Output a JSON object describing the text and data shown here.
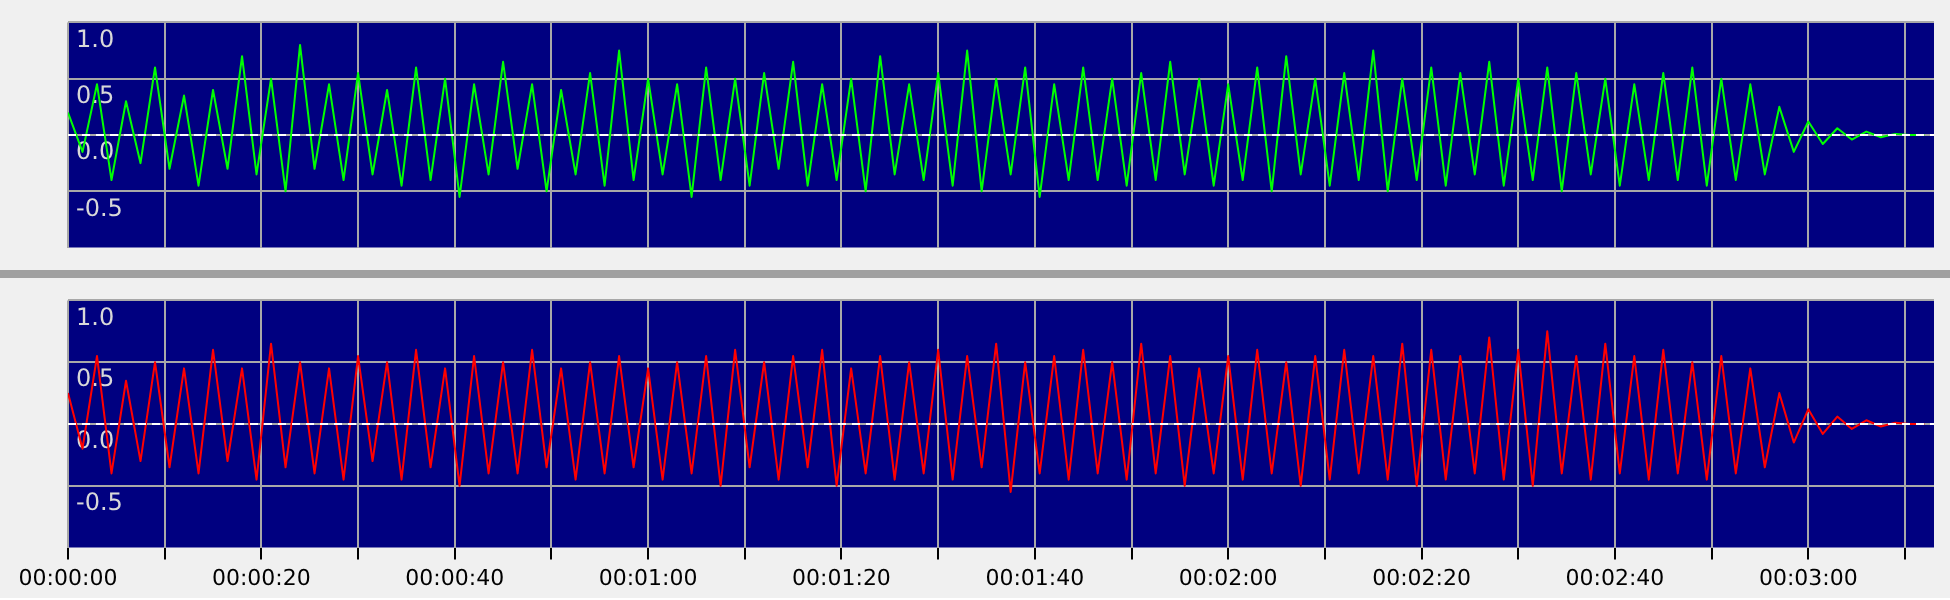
{
  "chart_data": [
    {
      "type": "line",
      "x": [
        0,
        1.5,
        3,
        4.5,
        6,
        7.5,
        9,
        10.5,
        12,
        13.5,
        15,
        16.5,
        18,
        19.5,
        21,
        22.5,
        24,
        25.5,
        27,
        28.5,
        30,
        31.5,
        33,
        34.5,
        36,
        37.5,
        39,
        40.5,
        42,
        43.5,
        45,
        46.5,
        48,
        49.5,
        51,
        52.5,
        54,
        55.5,
        57,
        58.5,
        60,
        61.5,
        63,
        64.5,
        66,
        67.5,
        69,
        70.5,
        72,
        73.5,
        75,
        76.5,
        78,
        79.5,
        81,
        82.5,
        84,
        85.5,
        87,
        88.5,
        90,
        91.5,
        93,
        94.5,
        96,
        97.5,
        99,
        100.5,
        102,
        103.5,
        105,
        106.5,
        108,
        109.5,
        111,
        112.5,
        114,
        115.5,
        117,
        118.5,
        120,
        121.5,
        123,
        124.5,
        126,
        127.5,
        129,
        130.5,
        132,
        133.5,
        135,
        136.5,
        138,
        139.5,
        141,
        142.5,
        144,
        145.5,
        147,
        148.5,
        150,
        151.5,
        153,
        154.5,
        156,
        157.5,
        159,
        160.5,
        162,
        163.5,
        165,
        166.5,
        168,
        169.5,
        171,
        172.5,
        174,
        175.5,
        177,
        178.5,
        180,
        181.5,
        183,
        184.5,
        186,
        187.5,
        189,
        190.5,
        192
      ],
      "series": [
        {
          "color": "#00ff00",
          "values": [
            0.2,
            -0.15,
            0.45,
            -0.4,
            0.3,
            -0.25,
            0.6,
            -0.3,
            0.35,
            -0.45,
            0.4,
            -0.3,
            0.7,
            -0.35,
            0.5,
            -0.5,
            0.8,
            -0.3,
            0.45,
            -0.4,
            0.55,
            -0.35,
            0.4,
            -0.45,
            0.6,
            -0.4,
            0.5,
            -0.55,
            0.45,
            -0.35,
            0.65,
            -0.3,
            0.45,
            -0.5,
            0.4,
            -0.35,
            0.55,
            -0.45,
            0.75,
            -0.4,
            0.5,
            -0.35,
            0.45,
            -0.55,
            0.6,
            -0.4,
            0.5,
            -0.45,
            0.55,
            -0.3,
            0.65,
            -0.45,
            0.45,
            -0.4,
            0.5,
            -0.5,
            0.7,
            -0.35,
            0.45,
            -0.4,
            0.55,
            -0.45,
            0.75,
            -0.5,
            0.5,
            -0.35,
            0.6,
            -0.55,
            0.45,
            -0.4,
            0.6,
            -0.4,
            0.5,
            -0.45,
            0.55,
            -0.4,
            0.65,
            -0.35,
            0.5,
            -0.45,
            0.45,
            -0.4,
            0.6,
            -0.5,
            0.7,
            -0.35,
            0.5,
            -0.45,
            0.55,
            -0.4,
            0.75,
            -0.5,
            0.5,
            -0.4,
            0.6,
            -0.45,
            0.55,
            -0.35,
            0.65,
            -0.45,
            0.5,
            -0.4,
            0.6,
            -0.5,
            0.55,
            -0.35,
            0.5,
            -0.45,
            0.45,
            -0.4,
            0.55,
            -0.4,
            0.6,
            -0.45,
            0.5,
            -0.4,
            0.45,
            -0.35,
            0.25,
            -0.15,
            0.12,
            -0.08,
            0.06,
            -0.04,
            0.03,
            -0.02,
            0.01,
            0,
            0
          ]
        }
      ],
      "ylim": [
        -1,
        1
      ],
      "yticks": [
        {
          "value": 1,
          "label": "1.0"
        },
        {
          "value": 0.5,
          "label": "0.5"
        },
        {
          "value": 0,
          "label": "0.0"
        },
        {
          "value": -0.5,
          "label": "-0.5"
        }
      ],
      "xlim": [
        0,
        193
      ],
      "xticks": [
        0,
        10,
        20,
        30,
        40,
        50,
        60,
        70,
        80,
        90,
        100,
        110,
        120,
        130,
        140,
        150,
        160,
        170,
        180,
        190
      ],
      "grid": true,
      "tick_labels": "y",
      "ref_lines": [
        {
          "axis": "y",
          "value": 0,
          "color": "#ffffff",
          "line_style": "dashed"
        }
      ]
    },
    {
      "type": "line",
      "x": [
        0,
        1.5,
        3,
        4.5,
        6,
        7.5,
        9,
        10.5,
        12,
        13.5,
        15,
        16.5,
        18,
        19.5,
        21,
        22.5,
        24,
        25.5,
        27,
        28.5,
        30,
        31.5,
        33,
        34.5,
        36,
        37.5,
        39,
        40.5,
        42,
        43.5,
        45,
        46.5,
        48,
        49.5,
        51,
        52.5,
        54,
        55.5,
        57,
        58.5,
        60,
        61.5,
        63,
        64.5,
        66,
        67.5,
        69,
        70.5,
        72,
        73.5,
        75,
        76.5,
        78,
        79.5,
        81,
        82.5,
        84,
        85.5,
        87,
        88.5,
        90,
        91.5,
        93,
        94.5,
        96,
        97.5,
        99,
        100.5,
        102,
        103.5,
        105,
        106.5,
        108,
        109.5,
        111,
        112.5,
        114,
        115.5,
        117,
        118.5,
        120,
        121.5,
        123,
        124.5,
        126,
        127.5,
        129,
        130.5,
        132,
        133.5,
        135,
        136.5,
        138,
        139.5,
        141,
        142.5,
        144,
        145.5,
        147,
        148.5,
        150,
        151.5,
        153,
        154.5,
        156,
        157.5,
        159,
        160.5,
        162,
        163.5,
        165,
        166.5,
        168,
        169.5,
        171,
        172.5,
        174,
        175.5,
        177,
        178.5,
        180,
        181.5,
        183,
        184.5,
        186,
        187.5,
        189,
        190.5,
        192
      ],
      "series": [
        {
          "color": "#ff0000",
          "values": [
            0.25,
            -0.2,
            0.55,
            -0.4,
            0.35,
            -0.3,
            0.5,
            -0.35,
            0.45,
            -0.4,
            0.6,
            -0.3,
            0.45,
            -0.45,
            0.65,
            -0.35,
            0.5,
            -0.4,
            0.45,
            -0.45,
            0.55,
            -0.3,
            0.5,
            -0.45,
            0.6,
            -0.35,
            0.45,
            -0.5,
            0.55,
            -0.4,
            0.5,
            -0.4,
            0.6,
            -0.35,
            0.45,
            -0.45,
            0.5,
            -0.4,
            0.55,
            -0.35,
            0.45,
            -0.45,
            0.5,
            -0.4,
            0.55,
            -0.5,
            0.6,
            -0.35,
            0.5,
            -0.45,
            0.55,
            -0.35,
            0.6,
            -0.5,
            0.45,
            -0.4,
            0.55,
            -0.45,
            0.5,
            -0.4,
            0.6,
            -0.45,
            0.55,
            -0.35,
            0.65,
            -0.55,
            0.5,
            -0.4,
            0.55,
            -0.45,
            0.6,
            -0.4,
            0.5,
            -0.45,
            0.65,
            -0.4,
            0.55,
            -0.5,
            0.45,
            -0.4,
            0.55,
            -0.45,
            0.6,
            -0.4,
            0.5,
            -0.5,
            0.55,
            -0.45,
            0.6,
            -0.4,
            0.55,
            -0.45,
            0.65,
            -0.5,
            0.6,
            -0.45,
            0.55,
            -0.4,
            0.7,
            -0.45,
            0.6,
            -0.5,
            0.75,
            -0.4,
            0.55,
            -0.45,
            0.65,
            -0.4,
            0.55,
            -0.45,
            0.6,
            -0.4,
            0.5,
            -0.45,
            0.55,
            -0.4,
            0.45,
            -0.35,
            0.25,
            -0.15,
            0.12,
            -0.08,
            0.06,
            -0.04,
            0.03,
            -0.02,
            0.01,
            0,
            0
          ]
        }
      ],
      "ylim": [
        -1,
        1
      ],
      "yticks": [
        {
          "value": 1,
          "label": "1.0"
        },
        {
          "value": 0.5,
          "label": "0.5"
        },
        {
          "value": 0,
          "label": "0.0"
        },
        {
          "value": -0.5,
          "label": "-0.5"
        }
      ],
      "xlim": [
        0,
        193
      ],
      "xticks": [
        {
          "value": 0,
          "label": "00:00:00"
        },
        {
          "value": 10,
          "label": null
        },
        {
          "value": 20,
          "label": "00:00:20"
        },
        {
          "value": 30,
          "label": null
        },
        {
          "value": 40,
          "label": "00:00:40"
        },
        {
          "value": 50,
          "label": null
        },
        {
          "value": 60,
          "label": "00:01:00"
        },
        {
          "value": 70,
          "label": null
        },
        {
          "value": 80,
          "label": "00:01:20"
        },
        {
          "value": 90,
          "label": null
        },
        {
          "value": 100,
          "label": "00:01:40"
        },
        {
          "value": 110,
          "label": null
        },
        {
          "value": 120,
          "label": "00:02:00"
        },
        {
          "value": 130,
          "label": null
        },
        {
          "value": 140,
          "label": "00:02:20"
        },
        {
          "value": 150,
          "label": null
        },
        {
          "value": 160,
          "label": "00:02:40"
        },
        {
          "value": 170,
          "label": null
        },
        {
          "value": 180,
          "label": "00:03:00"
        },
        {
          "value": 190,
          "label": null
        }
      ],
      "grid": true,
      "ref_lines": [
        {
          "axis": "y",
          "value": 0,
          "color": "#ffffff",
          "line_style": "dashed"
        }
      ]
    }
  ]
}
